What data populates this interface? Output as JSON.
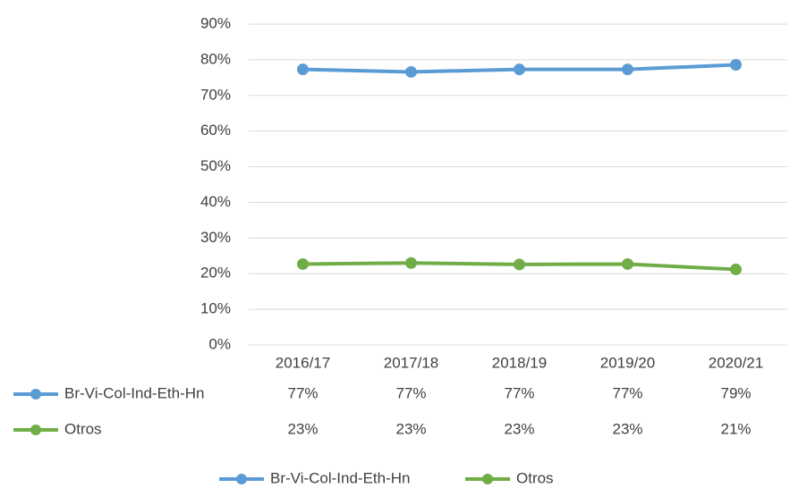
{
  "chart_data": {
    "type": "line",
    "categories": [
      "2016/17",
      "2017/18",
      "2018/19",
      "2019/20",
      "2020/21"
    ],
    "series": [
      {
        "name": "Br-Vi-Col-Ind-Eth-Hn",
        "color": "#5b9bd5",
        "values": [
          77.3,
          76.6,
          77.3,
          77.3,
          78.6
        ],
        "value_labels": [
          "77%",
          "77%",
          "77%",
          "77%",
          "79%"
        ]
      },
      {
        "name": "Otros",
        "color": "#70ad47",
        "values": [
          22.7,
          23.0,
          22.6,
          22.7,
          21.2
        ],
        "value_labels": [
          "23%",
          "23%",
          "23%",
          "23%",
          "21%"
        ]
      }
    ],
    "ylim": [
      0,
      90
    ],
    "yticks": [
      {
        "value": 0,
        "label": "0%"
      },
      {
        "value": 10,
        "label": "10%"
      },
      {
        "value": 20,
        "label": "20%"
      },
      {
        "value": 30,
        "label": "30%"
      },
      {
        "value": 40,
        "label": "40%"
      },
      {
        "value": 50,
        "label": "50%"
      },
      {
        "value": 60,
        "label": "60%"
      },
      {
        "value": 70,
        "label": "70%"
      },
      {
        "value": 80,
        "label": "80%"
      },
      {
        "value": 90,
        "label": "90%"
      }
    ],
    "grid": true,
    "legend": "bottom",
    "data_table": true
  }
}
